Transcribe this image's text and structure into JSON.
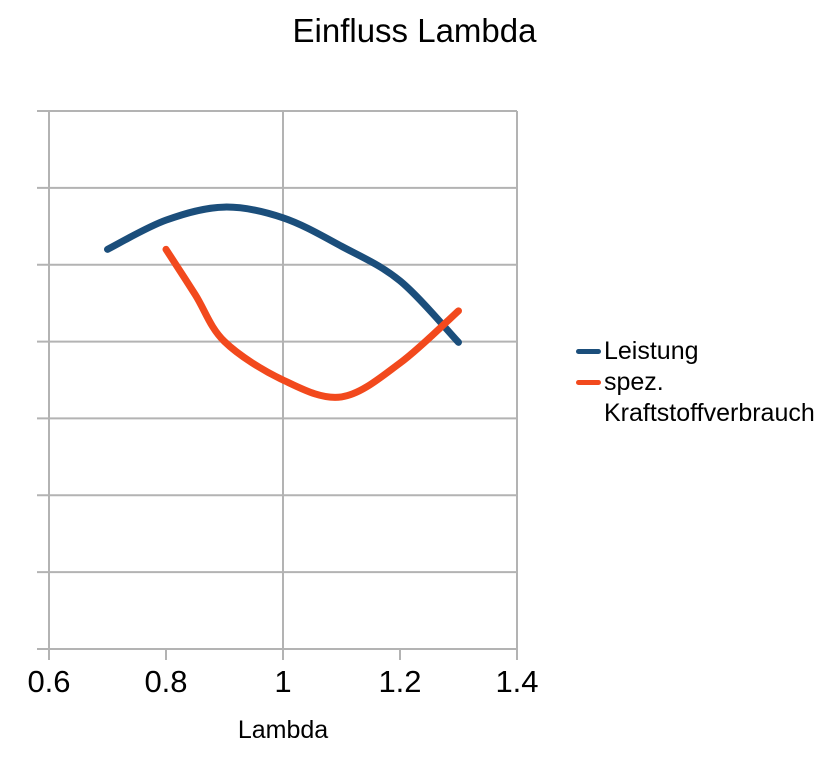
{
  "chart_data": {
    "type": "line",
    "title": "Einfluss Lambda",
    "xlabel": "Lambda",
    "ylabel": "",
    "xlim": [
      0.6,
      1.4
    ],
    "x_ticks": [
      0.6,
      0.8,
      1.0,
      1.2,
      1.4
    ],
    "x_tick_labels": [
      "0.6",
      "0.8",
      "1",
      "1.2",
      "1.4"
    ],
    "x_gridlines": [
      0.6,
      1.0,
      1.4
    ],
    "y_axis_labeled": false,
    "ylim": [
      0,
      7
    ],
    "y_gridline_divisions": 7,
    "y_units_note": "y-axis has no tick labels; y values are expressed in horizontal-gridline units counted upward from the bottom axis (0) to the top gridline (7)",
    "grid": true,
    "grid_color": "#b3b3b3",
    "legend_position": "right",
    "series": [
      {
        "name": "Leistung",
        "color": "#1b4e7b",
        "x": [
          0.7,
          0.8,
          0.9,
          1.0,
          1.1,
          1.2,
          1.3
        ],
        "y": [
          5.2,
          5.58,
          5.75,
          5.61,
          5.24,
          4.79,
          3.99
        ]
      },
      {
        "name": "spez. Kraftstoffverbrauch",
        "color": "#f2491d",
        "x": [
          0.8,
          0.85,
          0.9,
          1.0,
          1.1,
          1.2,
          1.3
        ],
        "y": [
          5.2,
          4.61,
          4.0,
          3.5,
          3.28,
          3.72,
          4.4
        ]
      }
    ]
  }
}
